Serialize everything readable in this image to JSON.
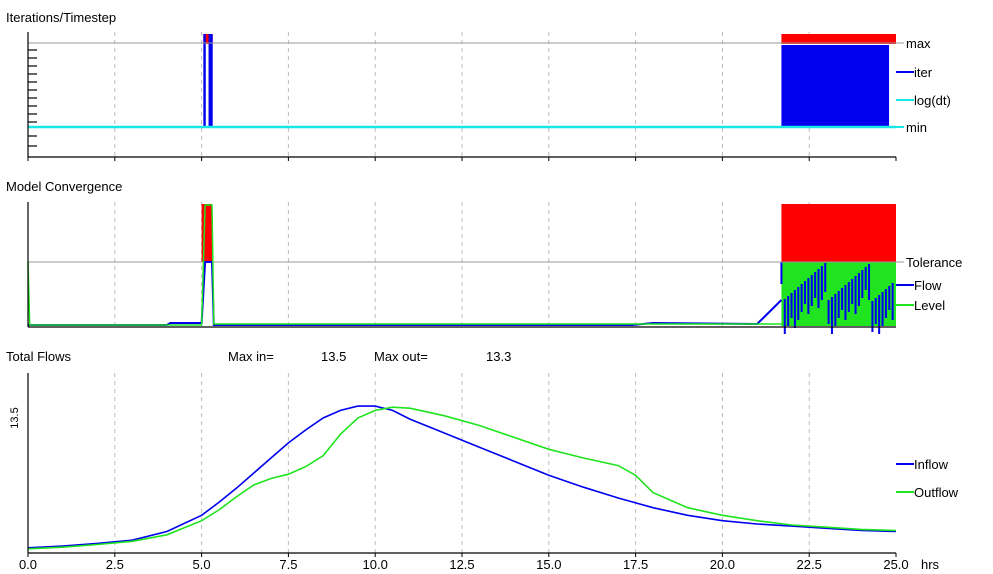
{
  "colors": {
    "red": "#ff0000",
    "blue": "#0000ee",
    "cyan": "#19e6e6",
    "green": "#1fe41f",
    "grid": "#bbbbbb",
    "ref_line": "#9a9a9a"
  },
  "chart_data": [
    {
      "type": "line",
      "title": "Iterations/Timestep",
      "x_range": [
        0,
        25
      ],
      "grid": "vertical dashed",
      "legend": "right",
      "labels": {
        "max": "max",
        "min": "min"
      },
      "series": [
        {
          "name": "iter",
          "color": "#0000ee"
        },
        {
          "name": "log(dt)",
          "color": "#19e6e6"
        }
      ],
      "blocks": [
        {
          "x0": 5.05,
          "x1": 5.32,
          "color": "red",
          "level": "max"
        },
        {
          "x0": 21.7,
          "x1": 25.0,
          "color": "red",
          "level": "max"
        },
        {
          "x0": 5.05,
          "x1": 5.12,
          "color": "blue",
          "level": "iter"
        },
        {
          "x0": 5.2,
          "x1": 5.32,
          "color": "blue",
          "level": "iter"
        },
        {
          "x0": 21.7,
          "x1": 24.8,
          "color": "blue",
          "level": "iter"
        }
      ]
    },
    {
      "type": "line",
      "title": "Model Convergence",
      "x_range": [
        0,
        25
      ],
      "grid": "vertical dashed",
      "legend": "right",
      "labels": {
        "tolerance": "Tolerance"
      },
      "series": [
        {
          "name": "Flow",
          "color": "#0000ee"
        },
        {
          "name": "Level",
          "color": "#1fe41f"
        }
      ],
      "blocks": [
        {
          "x0": 5.0,
          "x1": 5.3,
          "color": "red",
          "level": "above"
        },
        {
          "x0": 21.7,
          "x1": 25.0,
          "color": "red",
          "level": "above"
        },
        {
          "x0": 21.7,
          "x1": 25.0,
          "color": "green",
          "level": "tolerance"
        }
      ]
    },
    {
      "type": "line",
      "title": "Total Flows",
      "stats": {
        "max_in_label": "Max in=",
        "max_in_value": "13.5",
        "max_out_label": "Max out=",
        "max_out_value": "13.3"
      },
      "ylabel": "13.5",
      "xlabel": "hrs",
      "x_ticks": [
        "0.0",
        "2.5",
        "5.0",
        "7.5",
        "10.0",
        "12.5",
        "15.0",
        "17.5",
        "20.0",
        "22.5",
        "25.0"
      ],
      "x_range": [
        0,
        25
      ],
      "y_range": [
        0,
        13.5
      ],
      "grid": "vertical dashed",
      "legend": "right",
      "series": [
        {
          "name": "Inflow",
          "color": "#0000ee",
          "x": [
            0,
            1,
            2,
            3,
            4,
            5,
            5.5,
            6,
            6.5,
            7,
            7.5,
            8,
            8.5,
            9,
            9.5,
            10,
            10.5,
            11,
            12,
            13,
            14,
            15,
            16,
            17,
            18,
            19,
            20,
            21,
            22,
            23,
            24,
            25
          ],
          "y": [
            0.3,
            0.45,
            0.7,
            1.0,
            1.8,
            3.3,
            4.5,
            5.8,
            7.2,
            8.6,
            10.0,
            11.2,
            12.3,
            13.0,
            13.4,
            13.4,
            13.0,
            12.2,
            10.9,
            9.6,
            8.3,
            7.0,
            5.9,
            4.9,
            4.0,
            3.3,
            2.8,
            2.5,
            2.3,
            2.1,
            1.9,
            1.8
          ]
        },
        {
          "name": "Outflow",
          "color": "#1fe41f",
          "x": [
            0,
            1,
            2,
            3,
            4,
            5,
            5.5,
            6,
            6.5,
            7,
            7.5,
            8,
            8.5,
            9,
            9.5,
            10,
            10.5,
            11,
            12,
            13,
            14,
            15,
            16,
            17,
            17.5,
            18,
            19,
            20,
            21,
            22,
            23,
            24,
            25
          ],
          "y": [
            0.2,
            0.35,
            0.6,
            0.9,
            1.5,
            2.8,
            3.8,
            5.0,
            6.1,
            6.7,
            7.1,
            7.8,
            8.8,
            10.8,
            12.3,
            13.0,
            13.3,
            13.2,
            12.5,
            11.6,
            10.5,
            9.4,
            8.6,
            7.9,
            7.0,
            5.4,
            4.0,
            3.3,
            2.8,
            2.4,
            2.2,
            2.0,
            1.9
          ]
        }
      ]
    }
  ]
}
